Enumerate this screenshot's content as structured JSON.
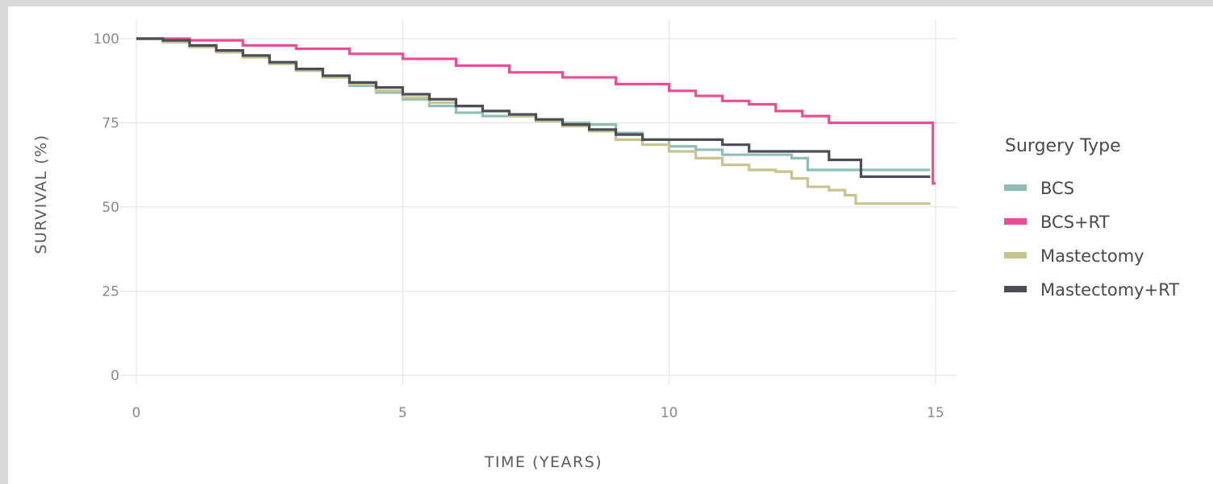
{
  "chart_data": {
    "type": "line",
    "xlabel": "TIME (YEARS)",
    "ylabel": "SURVIVAL (%)",
    "xlim": [
      0,
      15
    ],
    "ylim": [
      0,
      100
    ],
    "x_ticks": [
      0,
      5,
      10,
      15
    ],
    "y_ticks": [
      0,
      25,
      50,
      75,
      100
    ],
    "grid": true,
    "legend": {
      "title": "Surgery Type",
      "position": "right"
    },
    "series": [
      {
        "name": "BCS",
        "color": "#8fbdb8",
        "points": [
          [
            0,
            100
          ],
          [
            0.5,
            99
          ],
          [
            1,
            97.5
          ],
          [
            1.5,
            96
          ],
          [
            2,
            94.5
          ],
          [
            2.5,
            92.5
          ],
          [
            3,
            90.5
          ],
          [
            3.5,
            88.5
          ],
          [
            4,
            86
          ],
          [
            4.5,
            84
          ],
          [
            5,
            82
          ],
          [
            5.5,
            80
          ],
          [
            6,
            78
          ],
          [
            6.5,
            77
          ],
          [
            7,
            77
          ],
          [
            7.5,
            76
          ],
          [
            8,
            75
          ],
          [
            8.5,
            74.5
          ],
          [
            9,
            72
          ],
          [
            9.5,
            70
          ],
          [
            10,
            68
          ],
          [
            10.5,
            67
          ],
          [
            11,
            65.5
          ],
          [
            11.5,
            65.5
          ],
          [
            12,
            65.5
          ],
          [
            12.3,
            64.5
          ],
          [
            12.6,
            61
          ],
          [
            13,
            61
          ],
          [
            14,
            61
          ],
          [
            14.9,
            61
          ]
        ]
      },
      {
        "name": "BCS+RT",
        "color": "#ea4d93",
        "points": [
          [
            0,
            100
          ],
          [
            1,
            99.5
          ],
          [
            2,
            98
          ],
          [
            3,
            97
          ],
          [
            4,
            95.5
          ],
          [
            5,
            94
          ],
          [
            6,
            92
          ],
          [
            7,
            90
          ],
          [
            8,
            88.5
          ],
          [
            9,
            86.5
          ],
          [
            10,
            84.5
          ],
          [
            10.5,
            83
          ],
          [
            11,
            81.5
          ],
          [
            11.5,
            80.5
          ],
          [
            12,
            78.5
          ],
          [
            12.5,
            77
          ],
          [
            13,
            75
          ],
          [
            14,
            75
          ],
          [
            14.95,
            75
          ],
          [
            14.95,
            57
          ],
          [
            15,
            57
          ]
        ]
      },
      {
        "name": "Mastectomy",
        "color": "#c7c48d",
        "points": [
          [
            0,
            100
          ],
          [
            0.5,
            99
          ],
          [
            1,
            97.5
          ],
          [
            1.5,
            96
          ],
          [
            2,
            94.5
          ],
          [
            2.5,
            92.5
          ],
          [
            3,
            90.5
          ],
          [
            3.5,
            88.5
          ],
          [
            4,
            86.5
          ],
          [
            4.5,
            84.5
          ],
          [
            5,
            82.5
          ],
          [
            5.5,
            81
          ],
          [
            6,
            80
          ],
          [
            6.5,
            78.5
          ],
          [
            7,
            77
          ],
          [
            7.5,
            75.5
          ],
          [
            8,
            74
          ],
          [
            8.5,
            72.5
          ],
          [
            9,
            70
          ],
          [
            9.5,
            68.5
          ],
          [
            10,
            66.5
          ],
          [
            10.5,
            64.5
          ],
          [
            11,
            62.5
          ],
          [
            11.5,
            61
          ],
          [
            12,
            60.5
          ],
          [
            12.3,
            58.5
          ],
          [
            12.6,
            56
          ],
          [
            13,
            55
          ],
          [
            13.3,
            53.5
          ],
          [
            13.5,
            51
          ],
          [
            14,
            51
          ],
          [
            14.9,
            51
          ]
        ]
      },
      {
        "name": "Mastectomy+RT",
        "color": "#4b4e57",
        "points": [
          [
            0,
            100
          ],
          [
            0.5,
            99.5
          ],
          [
            1,
            98
          ],
          [
            1.5,
            96.5
          ],
          [
            2,
            95
          ],
          [
            2.5,
            93
          ],
          [
            3,
            91
          ],
          [
            3.5,
            89
          ],
          [
            4,
            87
          ],
          [
            4.5,
            85.5
          ],
          [
            5,
            83.5
          ],
          [
            5.5,
            82
          ],
          [
            6,
            80
          ],
          [
            6.5,
            78.5
          ],
          [
            7,
            77.5
          ],
          [
            7.5,
            76
          ],
          [
            8,
            74.5
          ],
          [
            8.5,
            73
          ],
          [
            9,
            71.5
          ],
          [
            9.5,
            70
          ],
          [
            10,
            70
          ],
          [
            10.5,
            70
          ],
          [
            11,
            68.5
          ],
          [
            11.5,
            66.5
          ],
          [
            12,
            66.5
          ],
          [
            12.5,
            66.5
          ],
          [
            13,
            64
          ],
          [
            13.6,
            59
          ],
          [
            14,
            59
          ],
          [
            14.9,
            59
          ]
        ]
      }
    ]
  }
}
